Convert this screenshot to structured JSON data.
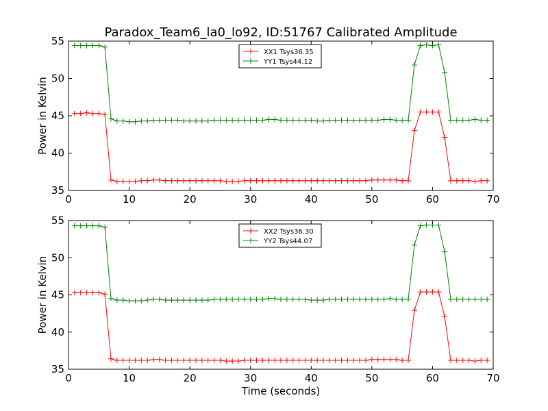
{
  "figure": {
    "title": "Paradox_Team6_la0_lo92, ID:51767 Calibrated Amplitude",
    "xlabel": "Time (seconds)"
  },
  "chart_data": [
    {
      "type": "line",
      "title": "Paradox_Team6_la0_lo92, ID:51767 Calibrated Amplitude",
      "xlabel": "",
      "ylabel": "Power in Kelvin",
      "xlim": [
        0,
        70
      ],
      "ylim": [
        35,
        55
      ],
      "xticks": [
        "0",
        "10",
        "20",
        "30",
        "40",
        "50",
        "60",
        "70"
      ],
      "yticks": [
        "35",
        "40",
        "45",
        "50",
        "55"
      ],
      "grid": false,
      "legend_position": "top-center",
      "x": [
        1,
        2,
        3,
        4,
        5,
        6,
        7,
        8,
        9,
        10,
        11,
        12,
        13,
        14,
        15,
        16,
        17,
        18,
        19,
        20,
        21,
        22,
        23,
        24,
        25,
        26,
        27,
        28,
        29,
        30,
        31,
        32,
        33,
        34,
        35,
        36,
        37,
        38,
        39,
        40,
        41,
        42,
        43,
        44,
        45,
        46,
        47,
        48,
        49,
        50,
        51,
        52,
        53,
        54,
        55,
        56,
        57,
        58,
        59,
        60,
        61,
        62,
        63,
        64,
        65,
        66,
        67,
        68,
        69
      ],
      "series": [
        {
          "name": "XX1 Tsys36.35",
          "color": "#ff0000",
          "values": [
            45.3,
            45.3,
            45.4,
            45.3,
            45.3,
            45.2,
            36.4,
            36.2,
            36.2,
            36.2,
            36.2,
            36.3,
            36.3,
            36.4,
            36.4,
            36.3,
            36.3,
            36.3,
            36.3,
            36.3,
            36.3,
            36.3,
            36.3,
            36.3,
            36.3,
            36.2,
            36.2,
            36.2,
            36.3,
            36.3,
            36.3,
            36.3,
            36.3,
            36.3,
            36.3,
            36.3,
            36.3,
            36.3,
            36.3,
            36.3,
            36.3,
            36.3,
            36.3,
            36.3,
            36.3,
            36.3,
            36.3,
            36.3,
            36.3,
            36.4,
            36.4,
            36.4,
            36.4,
            36.4,
            36.3,
            36.3,
            43.0,
            45.5,
            45.5,
            45.5,
            45.5,
            42.1,
            36.3,
            36.3,
            36.3,
            36.3,
            36.2,
            36.3,
            36.3
          ]
        },
        {
          "name": "YY1 Tsys44.12",
          "color": "#008000",
          "values": [
            54.4,
            54.4,
            54.4,
            54.4,
            54.4,
            54.2,
            44.6,
            44.3,
            44.3,
            44.2,
            44.2,
            44.3,
            44.3,
            44.4,
            44.4,
            44.4,
            44.4,
            44.4,
            44.3,
            44.3,
            44.3,
            44.3,
            44.3,
            44.4,
            44.4,
            44.4,
            44.4,
            44.4,
            44.4,
            44.4,
            44.4,
            44.4,
            44.5,
            44.5,
            44.4,
            44.4,
            44.4,
            44.4,
            44.4,
            44.4,
            44.3,
            44.3,
            44.4,
            44.4,
            44.4,
            44.4,
            44.4,
            44.4,
            44.4,
            44.4,
            44.4,
            44.5,
            44.5,
            44.4,
            44.4,
            44.4,
            51.8,
            54.4,
            54.5,
            54.4,
            54.5,
            50.8,
            44.4,
            44.4,
            44.4,
            44.4,
            44.5,
            44.4,
            44.4
          ]
        }
      ]
    },
    {
      "type": "line",
      "title": "",
      "xlabel": "Time (seconds)",
      "ylabel": "Power in Kelvin",
      "xlim": [
        0,
        70
      ],
      "ylim": [
        35,
        55
      ],
      "xticks": [
        "0",
        "10",
        "20",
        "30",
        "40",
        "50",
        "60",
        "70"
      ],
      "yticks": [
        "35",
        "40",
        "45",
        "50",
        "55"
      ],
      "grid": false,
      "legend_position": "top-center",
      "x": [
        1,
        2,
        3,
        4,
        5,
        6,
        7,
        8,
        9,
        10,
        11,
        12,
        13,
        14,
        15,
        16,
        17,
        18,
        19,
        20,
        21,
        22,
        23,
        24,
        25,
        26,
        27,
        28,
        29,
        30,
        31,
        32,
        33,
        34,
        35,
        36,
        37,
        38,
        39,
        40,
        41,
        42,
        43,
        44,
        45,
        46,
        47,
        48,
        49,
        50,
        51,
        52,
        53,
        54,
        55,
        56,
        57,
        58,
        59,
        60,
        61,
        62,
        63,
        64,
        65,
        66,
        67,
        68,
        69
      ],
      "series": [
        {
          "name": "XX2 Tsys36.30",
          "color": "#ff0000",
          "values": [
            45.3,
            45.3,
            45.3,
            45.3,
            45.3,
            45.1,
            36.4,
            36.2,
            36.2,
            36.2,
            36.2,
            36.2,
            36.2,
            36.3,
            36.3,
            36.2,
            36.2,
            36.2,
            36.2,
            36.2,
            36.2,
            36.2,
            36.2,
            36.2,
            36.2,
            36.1,
            36.1,
            36.1,
            36.2,
            36.2,
            36.2,
            36.2,
            36.2,
            36.2,
            36.2,
            36.2,
            36.2,
            36.2,
            36.2,
            36.2,
            36.2,
            36.2,
            36.2,
            36.2,
            36.2,
            36.2,
            36.2,
            36.2,
            36.2,
            36.3,
            36.3,
            36.3,
            36.3,
            36.3,
            36.2,
            36.2,
            42.9,
            45.4,
            45.4,
            45.4,
            45.4,
            42.1,
            36.2,
            36.2,
            36.2,
            36.2,
            36.1,
            36.2,
            36.2
          ]
        },
        {
          "name": "YY2 Tsys44.07",
          "color": "#008000",
          "values": [
            54.3,
            54.3,
            54.3,
            54.3,
            54.3,
            54.1,
            44.5,
            44.3,
            44.3,
            44.2,
            44.2,
            44.2,
            44.3,
            44.4,
            44.4,
            44.3,
            44.3,
            44.3,
            44.3,
            44.3,
            44.3,
            44.3,
            44.3,
            44.4,
            44.4,
            44.4,
            44.4,
            44.4,
            44.4,
            44.4,
            44.4,
            44.4,
            44.5,
            44.5,
            44.4,
            44.4,
            44.4,
            44.4,
            44.4,
            44.3,
            44.3,
            44.3,
            44.4,
            44.4,
            44.4,
            44.4,
            44.4,
            44.4,
            44.4,
            44.4,
            44.4,
            44.4,
            44.5,
            44.4,
            44.4,
            44.4,
            51.7,
            54.3,
            54.4,
            54.4,
            54.4,
            50.8,
            44.4,
            44.4,
            44.4,
            44.4,
            44.4,
            44.4,
            44.4
          ]
        }
      ]
    }
  ]
}
